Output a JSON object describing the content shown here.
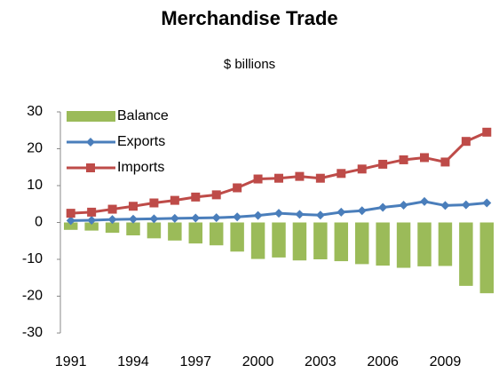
{
  "chart_data": {
    "type": "combo",
    "title": "Merchandise Trade",
    "subtitle": "$ billions",
    "categories": [
      "1991",
      null,
      null,
      "1994",
      null,
      null,
      "1997",
      null,
      null,
      "2000",
      null,
      null,
      "2003",
      null,
      null,
      "2006",
      null,
      null,
      "2009",
      null,
      null
    ],
    "series": [
      {
        "name": "Balance",
        "type": "bar",
        "color": "#9bbb59",
        "values": [
          -2.0,
          -2.2,
          -2.8,
          -3.5,
          -4.3,
          -4.9,
          -5.7,
          -6.2,
          -7.9,
          -9.9,
          -9.5,
          -10.3,
          -10.0,
          -10.5,
          -11.3,
          -11.7,
          -12.3,
          -11.9,
          -11.8,
          -17.2,
          -19.2
        ]
      },
      {
        "name": "Exports",
        "type": "line",
        "marker": "diamond",
        "color": "#4a7ebb",
        "values": [
          0.5,
          0.6,
          0.8,
          0.9,
          1.0,
          1.1,
          1.2,
          1.3,
          1.5,
          1.9,
          2.5,
          2.2,
          2.0,
          2.8,
          3.2,
          4.1,
          4.7,
          5.7,
          4.6,
          4.8,
          5.3
        ]
      },
      {
        "name": "Imports",
        "type": "line",
        "marker": "square",
        "color": "#be4b48",
        "values": [
          2.5,
          2.8,
          3.6,
          4.4,
          5.3,
          6.0,
          6.9,
          7.5,
          9.4,
          11.8,
          12.0,
          12.5,
          12.0,
          13.3,
          14.5,
          15.8,
          17.0,
          17.6,
          16.4,
          22.0,
          24.5
        ]
      }
    ],
    "ylim": [
      -30,
      30
    ],
    "yticks": [
      -30,
      -20,
      -10,
      0,
      10,
      20,
      30
    ],
    "legend": "upper left",
    "grid": false
  }
}
